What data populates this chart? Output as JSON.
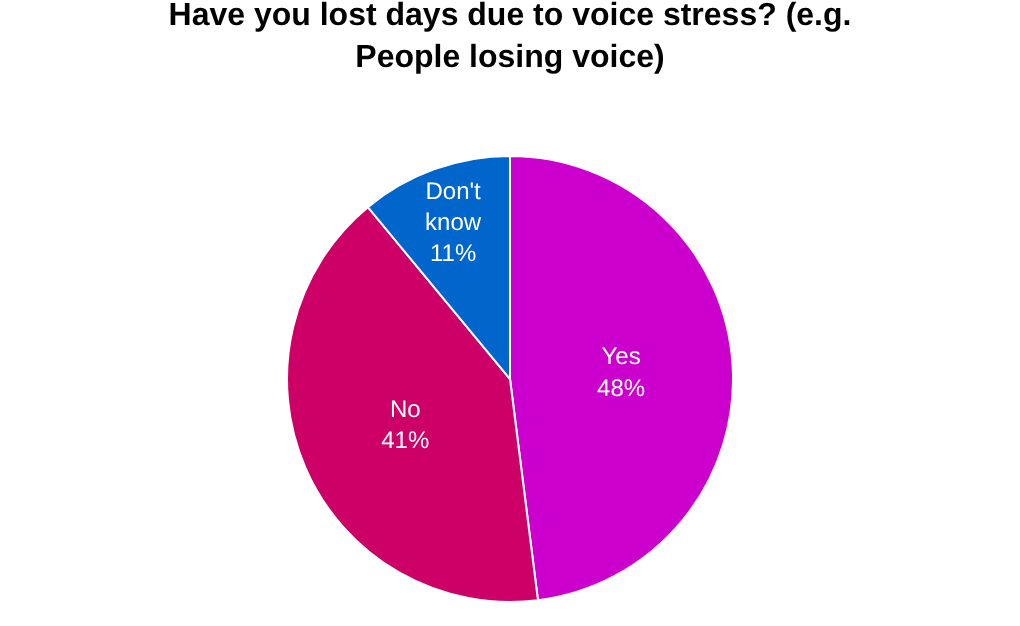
{
  "chart_data": {
    "type": "pie",
    "title": "Have you lost days due to voice stress? (e.g. People losing voice)",
    "categories": [
      "Yes",
      "No",
      "Don't know"
    ],
    "values": [
      48,
      41,
      11
    ],
    "value_labels": [
      "48%",
      "41%",
      "11%"
    ],
    "colors": [
      "#cc00cc",
      "#cc0066",
      "#0066cc"
    ],
    "data_labels": true,
    "legend": false
  }
}
